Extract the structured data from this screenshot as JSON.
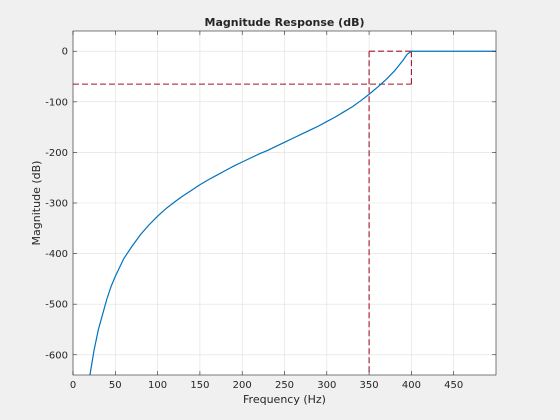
{
  "chart_data": {
    "type": "line",
    "title": "Magnitude Response (dB)",
    "xlabel": "Frequency (Hz)",
    "ylabel": "Magnitude (dB)",
    "xlim": [
      0,
      500
    ],
    "ylim": [
      -640,
      40
    ],
    "xticks": [
      0,
      50,
      100,
      150,
      200,
      250,
      300,
      350,
      400,
      450
    ],
    "yticks": [
      0,
      -100,
      -200,
      -300,
      -400,
      -500,
      -600
    ],
    "xtick_labels": [
      "0",
      "50",
      "100",
      "150",
      "200",
      "250",
      "300",
      "350",
      "400",
      "450"
    ],
    "ytick_labels": [
      "0",
      "-100",
      "-200",
      "-300",
      "-400",
      "-500",
      "-600"
    ],
    "grid": true,
    "series": [
      {
        "color": "#0072bd",
        "x": [
          20,
          22,
          25,
          30,
          35,
          40,
          45,
          50,
          60,
          70,
          80,
          90,
          100,
          110,
          120,
          130,
          140,
          150,
          160,
          170,
          180,
          190,
          200,
          210,
          220,
          230,
          240,
          250,
          260,
          270,
          280,
          290,
          300,
          310,
          320,
          330,
          340,
          350,
          360,
          370,
          380,
          390,
          395,
          400,
          410,
          420,
          430,
          440,
          450,
          460,
          470,
          480,
          490,
          500
        ],
        "y": [
          -640,
          -620,
          -590,
          -550,
          -520,
          -490,
          -465,
          -445,
          -410,
          -385,
          -362,
          -343,
          -326,
          -311,
          -298,
          -286,
          -275,
          -264,
          -254,
          -245,
          -236,
          -227,
          -219,
          -211,
          -203,
          -196,
          -188,
          -180,
          -172,
          -164,
          -156,
          -148,
          -139,
          -130,
          -120,
          -110,
          -98,
          -85,
          -71,
          -56,
          -39,
          -18,
          -6,
          0,
          0,
          0,
          0,
          0,
          0,
          0,
          0,
          0,
          0,
          0
        ]
      }
    ],
    "spec_lines": {
      "color": "#a2142f",
      "stopband_edge_hz": 350,
      "passband_edge_hz": 400,
      "stopband_level_db": -65,
      "passband_level_db": 0
    }
  }
}
